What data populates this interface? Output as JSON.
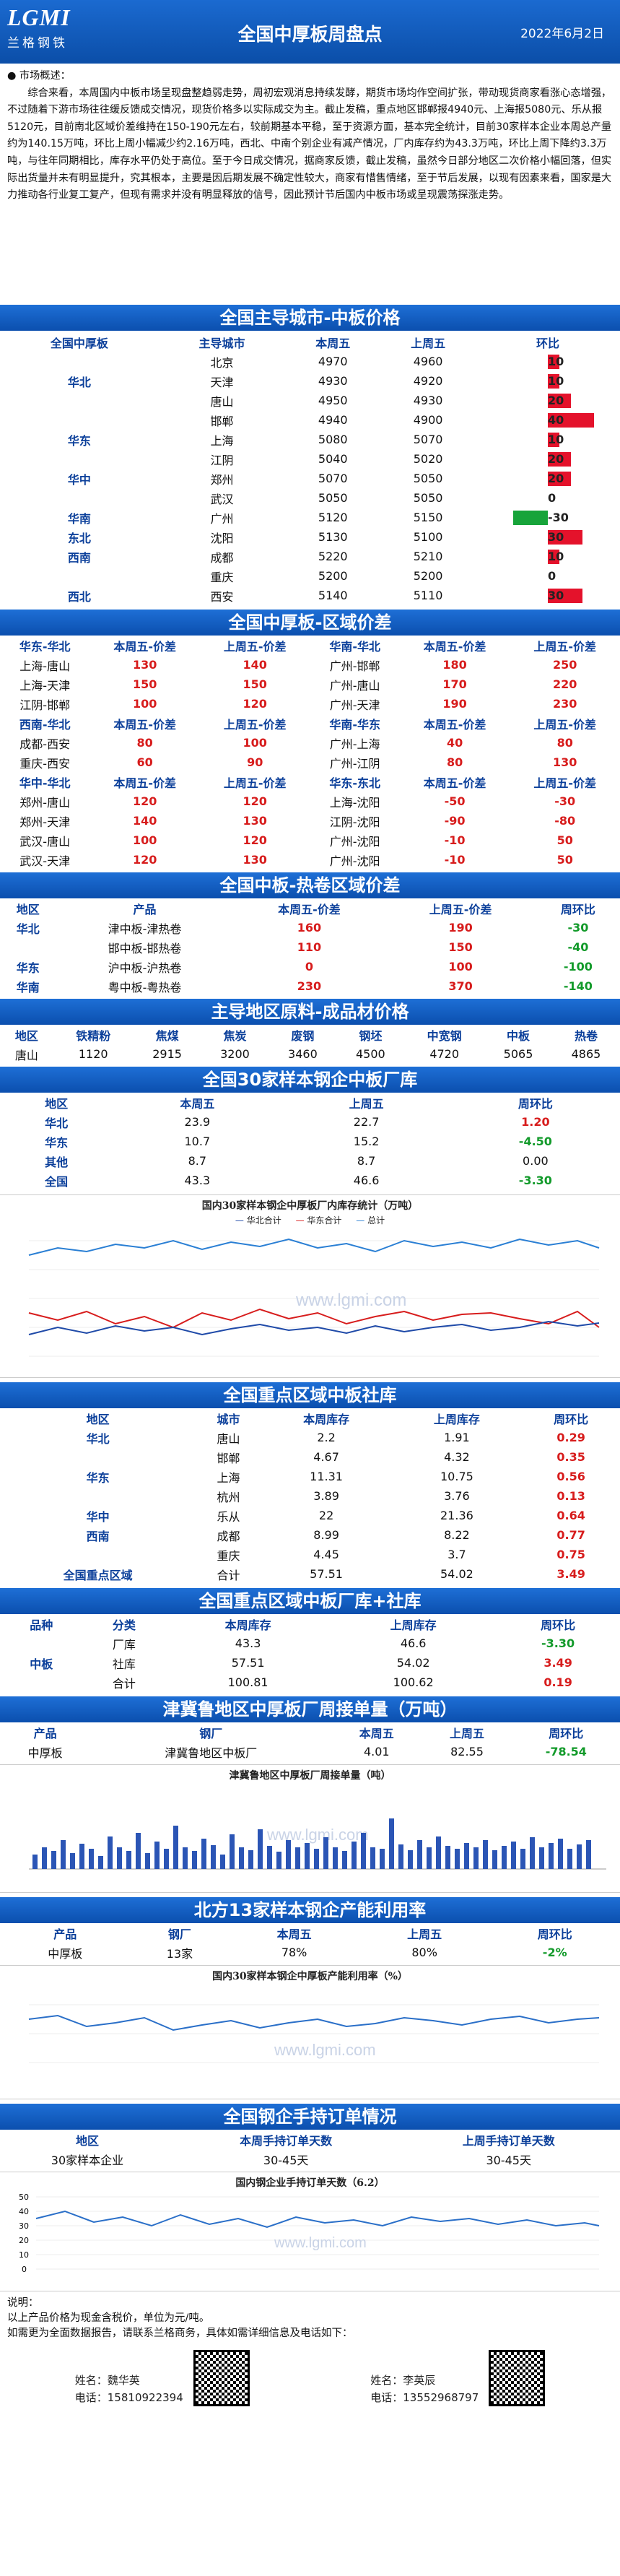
{
  "header": {
    "logo_mark": "LGMI",
    "logo_cn": "兰格钢铁",
    "title": "全国中厚板周盘点",
    "date": "2022年6月2日"
  },
  "summary": {
    "heading": "● 市场概述：",
    "text": "综合来看，本周国内中板市场呈现盘整趋弱走势，周初宏观消息持续发酵，期货市场均作空间扩张，带动现货商家看涨心态增强，不过随着下游市场往往缓反馈成交情况，现货价格多以实际成交为主。截止发稿，重点地区邯郸报4940元、上海报5080元、乐从报5120元，目前南北区域价差维持在150-190元左右，较前期基本平稳，至于资源方面，基本完全统计，目前30家样本企业本周总产量约为140.15万吨，环比上周小幅减少约2.16万吨，西北、中南个别企业有减产情况，厂内库存约为43.3万吨，环比上周下降约3.3万吨，与往年同期相比，库存水平仍处于高位。至于今日成交情况，据商家反馈，截止发稿，虽然今日部分地区二次价格小幅回落，但实际出货量并未有明显提升，究其根本，主要是因后期发展不确定性较大，商家有惜售情绪，至于节后发展，以现有因素来看，国家是大力推动各行业复工复产，但现有需求并没有明显释放的信号，因此预计节后国内中板市场或呈现震荡探涨走势。"
  },
  "sections": {
    "city": "全国主导城市-中板价格",
    "region": "全国中厚板-区域价差",
    "roll": "全国中板-热卷区域价差",
    "raw": "主导地区原料-成品材价格",
    "inv30": "全国30家样本钢企中板厂库",
    "social": "全国重点区域中板社库",
    "total": "全国重点区域中板厂库+社库",
    "ship": "津冀鲁地区中厚板厂周接单量（万吨）",
    "util": "北方13家样本钢企产能利用率",
    "order": "全国钢企手持订单情况"
  },
  "city_table": {
    "headers": [
      "全国中厚板",
      "主导城市",
      "本周五",
      "上周五",
      "环比"
    ],
    "rows": [
      {
        "region": "",
        "city": "北京",
        "cur": "4970",
        "prev": "4960",
        "chg": 10
      },
      {
        "region": "华北",
        "city": "天津",
        "cur": "4930",
        "prev": "4920",
        "chg": 10
      },
      {
        "region": "",
        "city": "唐山",
        "cur": "4950",
        "prev": "4930",
        "chg": 20
      },
      {
        "region": "",
        "city": "邯郸",
        "cur": "4940",
        "prev": "4900",
        "chg": 40
      },
      {
        "region": "华东",
        "city": "上海",
        "cur": "5080",
        "prev": "5070",
        "chg": 10
      },
      {
        "region": "",
        "city": "江阴",
        "cur": "5040",
        "prev": "5020",
        "chg": 20
      },
      {
        "region": "华中",
        "city": "郑州",
        "cur": "5070",
        "prev": "5050",
        "chg": 20
      },
      {
        "region": "",
        "city": "武汉",
        "cur": "5050",
        "prev": "5050",
        "chg": 0
      },
      {
        "region": "华南",
        "city": "广州",
        "cur": "5120",
        "prev": "5150",
        "chg": -30
      },
      {
        "region": "东北",
        "city": "沈阳",
        "cur": "5130",
        "prev": "5100",
        "chg": 30
      },
      {
        "region": "西南",
        "city": "成都",
        "cur": "5220",
        "prev": "5210",
        "chg": 10
      },
      {
        "region": "",
        "city": "重庆",
        "cur": "5200",
        "prev": "5200",
        "chg": 0
      },
      {
        "region": "西北",
        "city": "西安",
        "cur": "5140",
        "prev": "5110",
        "chg": 30
      }
    ]
  },
  "region_table": {
    "headers": [
      "华东-华北",
      "本周五-价差",
      "上周五-价差",
      "华南-华北",
      "本周五-价差",
      "上周五-价差"
    ],
    "rows": [
      [
        "上海-唐山",
        "130",
        "140",
        "广州-邯郸",
        "180",
        "250"
      ],
      [
        "上海-天津",
        "150",
        "150",
        "广州-唐山",
        "170",
        "220"
      ],
      [
        "江阴-邯郸",
        "100",
        "120",
        "广州-天津",
        "190",
        "230"
      ]
    ],
    "headers2": [
      "西南-华北",
      "本周五-价差",
      "上周五-价差",
      "华南-华东",
      "本周五-价差",
      "上周五-价差"
    ],
    "rows2": [
      [
        "成都-西安",
        "80",
        "100",
        "广州-上海",
        "40",
        "80"
      ],
      [
        "重庆-西安",
        "60",
        "90",
        "广州-江阴",
        "80",
        "130"
      ]
    ],
    "headers3": [
      "华中-华北",
      "本周五-价差",
      "上周五-价差",
      "华东-东北",
      "本周五-价差",
      "上周五-价差"
    ],
    "rows3": [
      [
        "郑州-唐山",
        "120",
        "120",
        "上海-沈阳",
        "-50",
        "-30"
      ],
      [
        "郑州-天津",
        "140",
        "130",
        "江阴-沈阳",
        "-90",
        "-80"
      ],
      [
        "武汉-唐山",
        "100",
        "120",
        "广州-沈阳",
        "-10",
        "50"
      ],
      [
        "武汉-天津",
        "120",
        "130",
        "广州-沈阳",
        "-10",
        "50"
      ]
    ]
  },
  "roll_table": {
    "headers": [
      "地区",
      "产品",
      "本周五-价差",
      "上周五-价差",
      "周环比"
    ],
    "rows": [
      [
        "华北",
        "津中板-津热卷",
        "160",
        "190",
        "-30"
      ],
      [
        "",
        "邯中板-邯热卷",
        "110",
        "150",
        "-40"
      ],
      [
        "华东",
        "沪中板-沪热卷",
        "0",
        "100",
        "-100"
      ],
      [
        "华南",
        "粤中板-粤热卷",
        "230",
        "370",
        "-140"
      ]
    ]
  },
  "raw_table": {
    "headers": [
      "地区",
      "铁精粉",
      "焦煤",
      "焦炭",
      "废钢",
      "钢坯",
      "中宽钢",
      "中板",
      "热卷"
    ],
    "row": [
      "唐山",
      "1120",
      "2915",
      "3200",
      "3460",
      "4500",
      "4720",
      "5065",
      "4865"
    ]
  },
  "inv30_table": {
    "headers": [
      "地区",
      "本周五",
      "上周五",
      "周环比"
    ],
    "rows": [
      [
        "华北",
        "23.9",
        "22.7",
        "1.20"
      ],
      [
        "华东",
        "10.7",
        "15.2",
        "-4.50"
      ],
      [
        "其他",
        "8.7",
        "8.7",
        "0.00"
      ],
      [
        "全国",
        "43.3",
        "46.6",
        "-3.30"
      ]
    ]
  },
  "chart1": {
    "title": "国内30家样本钢企中厚板厂内库存统计（万吨）",
    "legend": [
      "华北合计",
      "华东合计",
      "总计"
    ],
    "watermark": "www.lgmi.com"
  },
  "social_table": {
    "headers": [
      "地区",
      "城市",
      "本周库存",
      "上周库存",
      "周环比"
    ],
    "rows": [
      [
        "华北",
        "唐山",
        "2.2",
        "1.91",
        "0.29"
      ],
      [
        "",
        "邯郸",
        "4.67",
        "4.32",
        "0.35"
      ],
      [
        "华东",
        "上海",
        "11.31",
        "10.75",
        "0.56"
      ],
      [
        "",
        "杭州",
        "3.89",
        "3.76",
        "0.13"
      ],
      [
        "华中",
        "乐从",
        "22",
        "21.36",
        "0.64"
      ],
      [
        "西南",
        "成都",
        "8.99",
        "8.22",
        "0.77"
      ],
      [
        "",
        "重庆",
        "4.45",
        "3.7",
        "0.75"
      ],
      [
        "全国重点区域",
        "合计",
        "57.51",
        "54.02",
        "3.49"
      ]
    ]
  },
  "total_table": {
    "headers": [
      "品种",
      "分类",
      "本周库存",
      "上周库存",
      "周环比"
    ],
    "rows": [
      [
        "",
        "厂库",
        "43.3",
        "46.6",
        "-3.30"
      ],
      [
        "中板",
        "社库",
        "57.51",
        "54.02",
        "3.49"
      ],
      [
        "",
        "合计",
        "100.81",
        "100.62",
        "0.19"
      ]
    ]
  },
  "ship_table": {
    "headers": [
      "产品",
      "钢厂",
      "本周五",
      "上周五",
      "周环比"
    ],
    "row": [
      "中厚板",
      "津冀鲁地区中板厂",
      "4.01",
      "82.55",
      "-78.54"
    ]
  },
  "chart2": {
    "title": "津冀鲁地区中厚板厂周接单量（吨）",
    "watermark": "www.lgmi.com"
  },
  "util_table": {
    "headers": [
      "产品",
      "钢厂",
      "本周五",
      "上周五",
      "周环比"
    ],
    "row": [
      "中厚板",
      "13家",
      "78%",
      "80%",
      "-2%"
    ]
  },
  "chart3": {
    "title": "国内30家样本钢企中厚板产能利用率（%）",
    "watermark": "www.lgmi.com"
  },
  "order_table": {
    "headers": [
      "地区",
      "本周手持订单天数",
      "上周手持订单天数"
    ],
    "row": [
      "30家样本企业",
      "30-45天",
      "30-45天"
    ]
  },
  "chart4": {
    "title": "国内钢企业手持订单天数（6.2）",
    "watermark": "www.lgmi.com",
    "yticks": [
      "50",
      "40",
      "30",
      "20",
      "10",
      "0"
    ]
  },
  "footer": {
    "notes": [
      "说明：",
      "以上产品价格为现金含税价，单位为元/吨。",
      "如需更为全面数据报告，请联系兰格商务，具体如需详细信息及电话如下："
    ],
    "p1": {
      "name_label": "姓名：",
      "name": "魏华英",
      "tel_label": "电话：",
      "tel": "15810922394"
    },
    "p2": {
      "name_label": "姓名：",
      "name": "李英辰",
      "tel_label": "电话：",
      "tel": "13552968797"
    }
  },
  "colors": {
    "band": "#0b4fae",
    "red": "#e4122b",
    "green": "#17a43a"
  }
}
